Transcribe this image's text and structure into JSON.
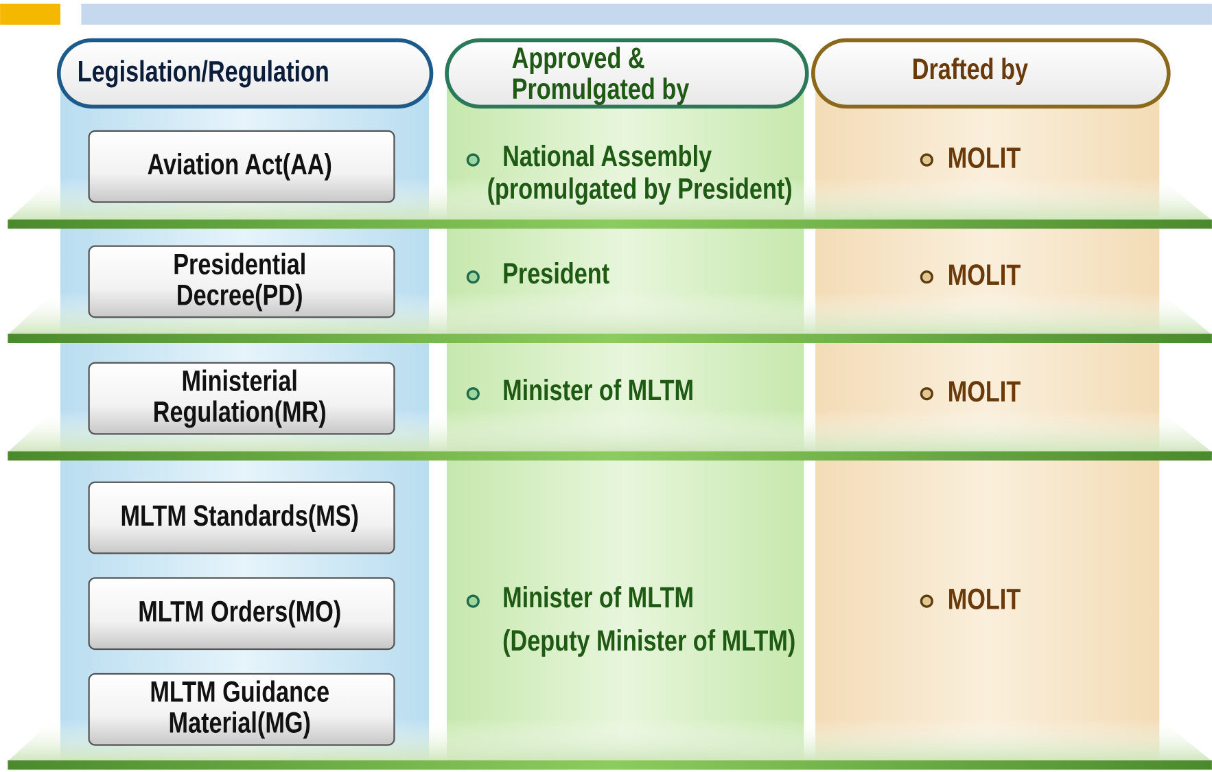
{
  "header": {
    "legislation": "Legislation/Regulation",
    "approved": [
      "Approved &",
      "Promulgated by"
    ],
    "drafted": "Drafted by"
  },
  "rows": [
    {
      "items": [
        [
          "Aviation Act(AA)"
        ]
      ],
      "approved": [
        "National Assembly",
        "(promulgated by President)"
      ],
      "drafted": "MOLIT"
    },
    {
      "items": [
        [
          "Presidential",
          "Decree(PD)"
        ]
      ],
      "approved": [
        "President"
      ],
      "drafted": "MOLIT"
    },
    {
      "items": [
        [
          "Ministerial",
          "Regulation(MR)"
        ]
      ],
      "approved": [
        "Minister of MLTM"
      ],
      "drafted": "MOLIT"
    },
    {
      "items": [
        [
          "MLTM Standards(MS)"
        ],
        [
          "MLTM Orders(MO)"
        ],
        [
          "MLTM Guidance",
          "Material(MG)"
        ]
      ],
      "approved": [
        "Minister of MLTM",
        "(Deputy Minister of MLTM)"
      ],
      "drafted": "MOLIT"
    }
  ]
}
